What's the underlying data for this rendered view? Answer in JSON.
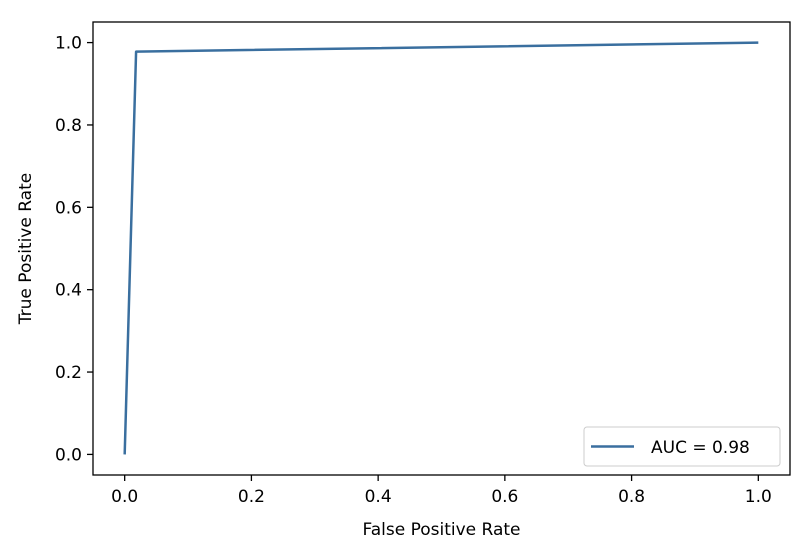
{
  "chart_data": {
    "type": "line",
    "title": "",
    "xlabel": "False Positive Rate",
    "ylabel": "True Positive Rate",
    "xlim": [
      -0.05,
      1.05
    ],
    "ylim": [
      -0.05,
      1.05
    ],
    "xticks": [
      0.0,
      0.2,
      0.4,
      0.6,
      0.8,
      1.0
    ],
    "yticks": [
      0.0,
      0.2,
      0.4,
      0.6,
      0.8,
      1.0
    ],
    "xtick_labels": [
      "0.0",
      "0.2",
      "0.4",
      "0.6",
      "0.8",
      "1.0"
    ],
    "ytick_labels": [
      "0.0",
      "0.2",
      "0.4",
      "0.6",
      "0.8",
      "1.0"
    ],
    "grid": false,
    "legend": "bottom-right",
    "series": [
      {
        "name": "AUC = 0.98",
        "color": "#3a6f9f",
        "x": [
          0.0,
          0.018,
          1.0
        ],
        "y": [
          0.0,
          0.978,
          1.0
        ]
      }
    ]
  }
}
